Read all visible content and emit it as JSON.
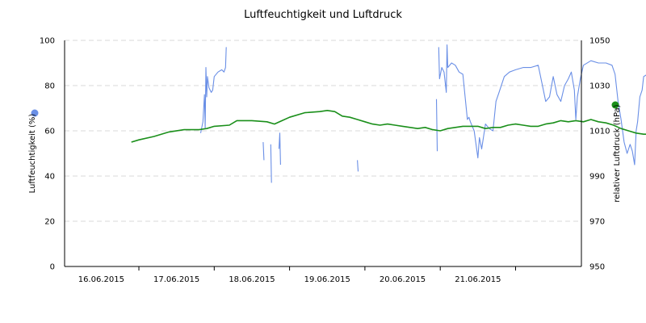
{
  "chart_data": {
    "type": "line",
    "title": "Luftfeuchtigkeit und Luftdruck",
    "x_tick_labels": [
      "16.06.2015",
      "17.06.2015",
      "18.06.2015",
      "19.06.2015",
      "20.06.2015",
      "21.06.2015"
    ],
    "x_range": [
      0,
      6.8
    ],
    "y_left": {
      "label": "Luftfeuchtigkeit (%)",
      "range": [
        0,
        100
      ],
      "ticks": [
        0,
        20,
        40,
        60,
        80,
        100
      ]
    },
    "y_right": {
      "label": "relativer Luftdruck (hPa)",
      "range": [
        950,
        1050
      ],
      "ticks": [
        950,
        970,
        990,
        1010,
        1030,
        1050
      ]
    },
    "grid": true,
    "series": [
      {
        "name": "Luftfeuchtigkeit (%)",
        "axis": "left",
        "color": "#6a8fe6",
        "segments": [
          [
            [
              0.82,
              59
            ],
            [
              0.85,
              64
            ],
            [
              0.87,
              76
            ],
            [
              0.88,
              61
            ],
            [
              0.89,
              88
            ],
            [
              0.9,
              75
            ],
            [
              0.91,
              84
            ],
            [
              0.93,
              79
            ],
            [
              0.96,
              77
            ],
            [
              0.98,
              78
            ],
            [
              1.0,
              84
            ],
            [
              1.05,
              86
            ],
            [
              1.1,
              87
            ],
            [
              1.13,
              86
            ],
            [
              1.15,
              88
            ],
            [
              1.16,
              97
            ]
          ],
          [
            [
              1.65,
              55
            ],
            [
              1.66,
              47
            ]
          ],
          [
            [
              1.75,
              54
            ],
            [
              1.76,
              37
            ]
          ],
          [
            [
              1.86,
              52
            ],
            [
              1.87,
              59
            ],
            [
              1.88,
              45
            ]
          ],
          [
            [
              2.9,
              47
            ],
            [
              2.91,
              42
            ]
          ],
          [
            [
              3.95,
              74
            ],
            [
              3.96,
              51
            ]
          ],
          [
            [
              3.98,
              97
            ],
            [
              3.99,
              83
            ],
            [
              4.02,
              88
            ],
            [
              4.05,
              86
            ],
            [
              4.08,
              77
            ],
            [
              4.09,
              98
            ],
            [
              4.1,
              88
            ],
            [
              4.15,
              90
            ],
            [
              4.2,
              89
            ],
            [
              4.25,
              86
            ],
            [
              4.3,
              85
            ],
            [
              4.33,
              75
            ],
            [
              4.36,
              65
            ],
            [
              4.38,
              66
            ],
            [
              4.4,
              64
            ],
            [
              4.45,
              60
            ],
            [
              4.5,
              48
            ],
            [
              4.52,
              57
            ],
            [
              4.55,
              52
            ],
            [
              4.6,
              63
            ],
            [
              4.65,
              61
            ],
            [
              4.7,
              60
            ],
            [
              4.74,
              73
            ],
            [
              4.78,
              77
            ],
            [
              4.85,
              84
            ],
            [
              4.92,
              86
            ],
            [
              5.0,
              87
            ],
            [
              5.1,
              88
            ],
            [
              5.2,
              88
            ],
            [
              5.3,
              89
            ],
            [
              5.35,
              81
            ],
            [
              5.4,
              73
            ],
            [
              5.45,
              75
            ],
            [
              5.5,
              84
            ],
            [
              5.55,
              76
            ],
            [
              5.6,
              73
            ],
            [
              5.65,
              80
            ],
            [
              5.7,
              83
            ],
            [
              5.74,
              86
            ],
            [
              5.78,
              78
            ],
            [
              5.8,
              65
            ],
            [
              5.82,
              75
            ],
            [
              5.86,
              83
            ],
            [
              5.9,
              89
            ],
            [
              6.0,
              91
            ],
            [
              6.1,
              90
            ],
            [
              6.2,
              90
            ],
            [
              6.28,
              89
            ],
            [
              6.32,
              85
            ],
            [
              6.36,
              73
            ],
            [
              6.4,
              65
            ],
            [
              6.44,
              55
            ],
            [
              6.48,
              50
            ],
            [
              6.52,
              54
            ],
            [
              6.55,
              51
            ],
            [
              6.58,
              45
            ],
            [
              6.6,
              60
            ],
            [
              6.62,
              64
            ],
            [
              6.65,
              75
            ],
            [
              6.68,
              78
            ],
            [
              6.7,
              84
            ],
            [
              6.75,
              85
            ]
          ]
        ]
      },
      {
        "name": "relativer Luftdruck (hPa)",
        "axis": "right",
        "color": "#1a8f1a",
        "points": [
          [
            -0.1,
            1005
          ],
          [
            0.0,
            1006
          ],
          [
            0.2,
            1007.5
          ],
          [
            0.4,
            1009.5
          ],
          [
            0.6,
            1010.5
          ],
          [
            0.8,
            1010.5
          ],
          [
            0.9,
            1011
          ],
          [
            1.0,
            1012
          ],
          [
            1.2,
            1012.5
          ],
          [
            1.3,
            1014.5
          ],
          [
            1.5,
            1014.5
          ],
          [
            1.7,
            1014
          ],
          [
            1.8,
            1013
          ],
          [
            1.9,
            1014.5
          ],
          [
            2.0,
            1016
          ],
          [
            2.2,
            1018
          ],
          [
            2.4,
            1018.5
          ],
          [
            2.5,
            1019
          ],
          [
            2.6,
            1018.5
          ],
          [
            2.7,
            1016.5
          ],
          [
            2.8,
            1016
          ],
          [
            2.9,
            1015
          ],
          [
            3.0,
            1014
          ],
          [
            3.1,
            1013
          ],
          [
            3.2,
            1012.5
          ],
          [
            3.3,
            1013
          ],
          [
            3.4,
            1012.5
          ],
          [
            3.5,
            1012
          ],
          [
            3.6,
            1011.5
          ],
          [
            3.7,
            1011
          ],
          [
            3.8,
            1011.5
          ],
          [
            3.9,
            1010.5
          ],
          [
            4.0,
            1010
          ],
          [
            4.1,
            1011
          ],
          [
            4.2,
            1011.5
          ],
          [
            4.3,
            1012
          ],
          [
            4.4,
            1012
          ],
          [
            4.5,
            1012
          ],
          [
            4.6,
            1011
          ],
          [
            4.7,
            1011.5
          ],
          [
            4.8,
            1011.5
          ],
          [
            4.9,
            1012.5
          ],
          [
            5.0,
            1013
          ],
          [
            5.1,
            1012.5
          ],
          [
            5.2,
            1012
          ],
          [
            5.3,
            1012
          ],
          [
            5.4,
            1013
          ],
          [
            5.5,
            1013.5
          ],
          [
            5.6,
            1014.5
          ],
          [
            5.7,
            1014
          ],
          [
            5.8,
            1014.5
          ],
          [
            5.9,
            1014
          ],
          [
            6.0,
            1015
          ],
          [
            6.1,
            1014
          ],
          [
            6.2,
            1013.5
          ],
          [
            6.3,
            1012.5
          ],
          [
            6.4,
            1011
          ],
          [
            6.5,
            1010
          ],
          [
            6.6,
            1009
          ],
          [
            6.7,
            1008.5
          ],
          [
            6.75,
            1008.5
          ]
        ]
      }
    ]
  }
}
